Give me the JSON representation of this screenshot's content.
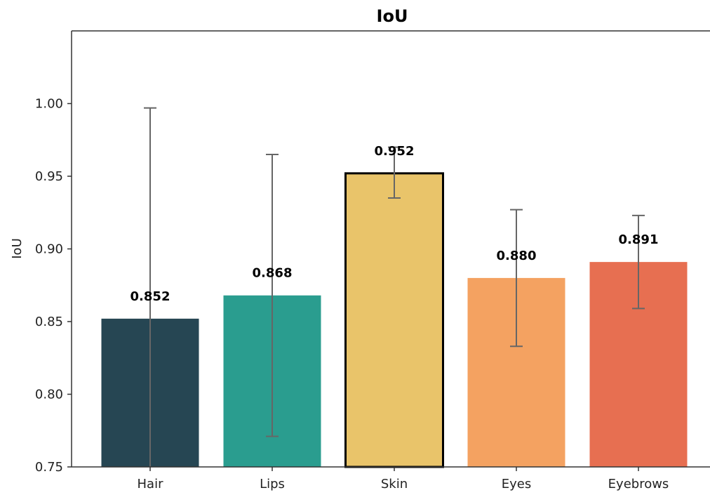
{
  "chart_data": {
    "type": "bar",
    "title": "IoU",
    "xlabel": "",
    "ylabel": "IoU",
    "ylim": [
      0.75,
      1.05
    ],
    "yticks": [
      "0.75",
      "0.80",
      "0.85",
      "0.90",
      "0.95",
      "1.00"
    ],
    "categories": [
      "Hair",
      "Lips",
      "Skin",
      "Eyes",
      "Eyebrows"
    ],
    "values": [
      0.852,
      0.868,
      0.952,
      0.88,
      0.891
    ],
    "value_labels": [
      "0.852",
      "0.868",
      "0.952",
      "0.880",
      "0.891"
    ],
    "error_low": [
      0.7,
      0.771,
      0.935,
      0.833,
      0.859
    ],
    "error_high": [
      0.997,
      0.965,
      0.97,
      0.927,
      0.923
    ],
    "colors": [
      "#264653",
      "#2a9d8f",
      "#e9c46a",
      "#f4a261",
      "#e76f51"
    ],
    "highlighted": "Skin",
    "highlight_edge_color": "#000000",
    "error_bar_color": "#666666",
    "grid": false,
    "legend": "none"
  }
}
